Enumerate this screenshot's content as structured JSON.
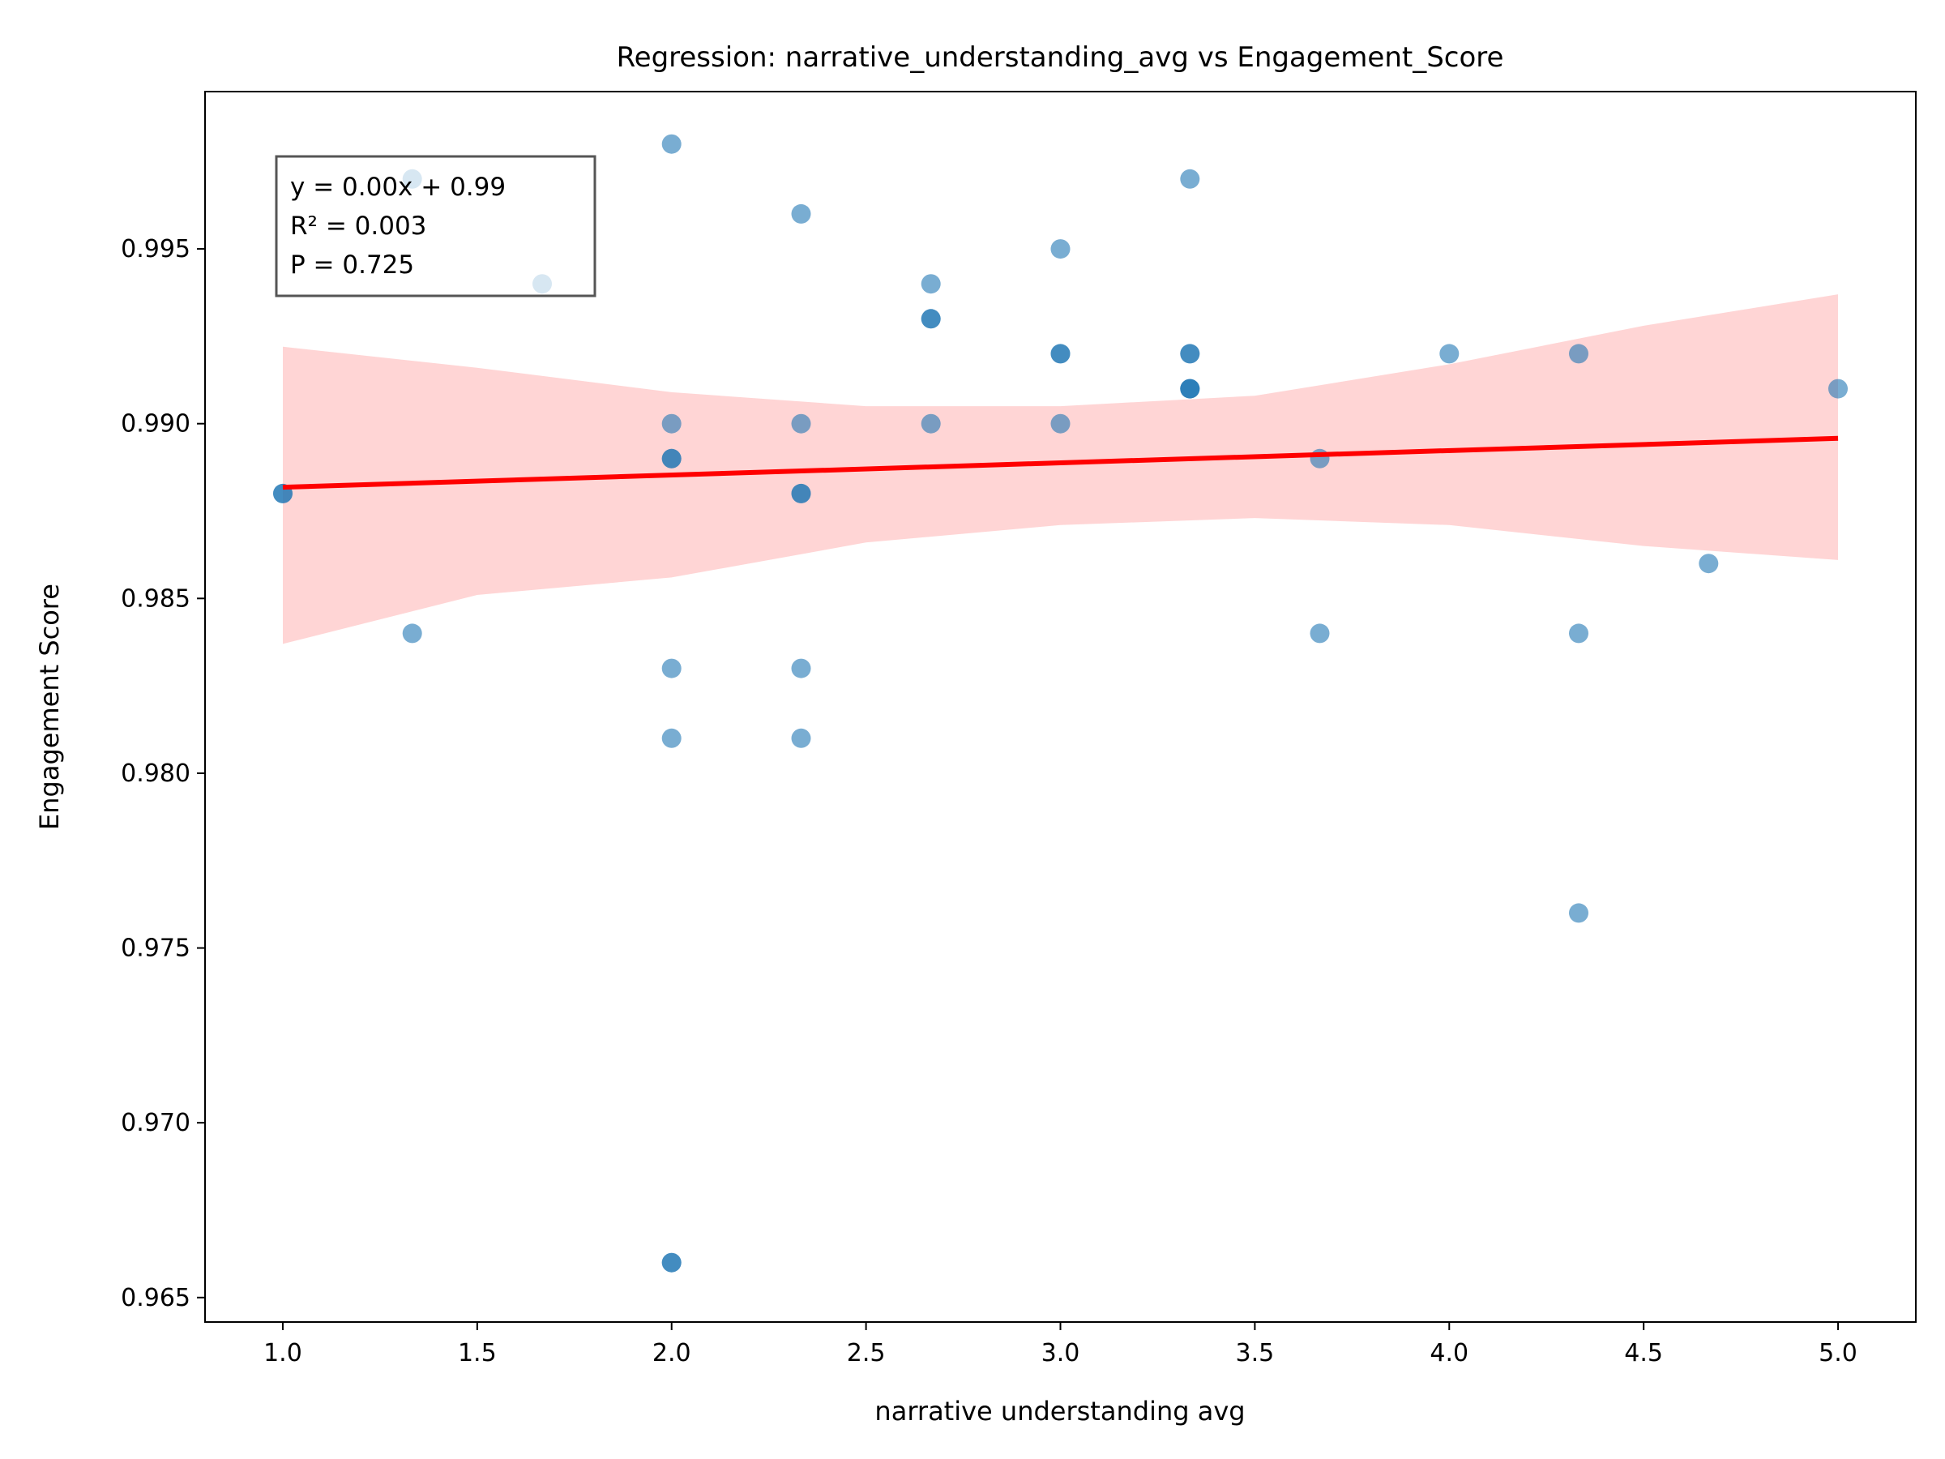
{
  "chart_data": {
    "type": "scatter",
    "title": "Regression: narrative_understanding_avg vs Engagement_Score",
    "xlabel": "narrative understanding avg",
    "ylabel": "Engagement Score",
    "xlim": [
      0.8,
      5.2
    ],
    "ylim": [
      0.9643,
      0.9995
    ],
    "xticks": [
      1.0,
      1.5,
      2.0,
      2.5,
      3.0,
      3.5,
      4.0,
      4.5,
      5.0
    ],
    "xtick_labels": [
      "1.0",
      "1.5",
      "2.0",
      "2.5",
      "3.0",
      "3.5",
      "4.0",
      "4.5",
      "5.0"
    ],
    "yticks": [
      0.965,
      0.97,
      0.975,
      0.98,
      0.985,
      0.99,
      0.995
    ],
    "ytick_labels": [
      "0.965",
      "0.970",
      "0.975",
      "0.980",
      "0.985",
      "0.990",
      "0.995"
    ],
    "grid": false,
    "points": [
      {
        "x": 1.0,
        "y": 0.988
      },
      {
        "x": 1.0,
        "y": 0.988
      },
      {
        "x": 1.333,
        "y": 0.997
      },
      {
        "x": 1.333,
        "y": 0.984
      },
      {
        "x": 1.667,
        "y": 0.994
      },
      {
        "x": 2.0,
        "y": 0.998
      },
      {
        "x": 2.0,
        "y": 0.99
      },
      {
        "x": 2.0,
        "y": 0.989
      },
      {
        "x": 2.0,
        "y": 0.989
      },
      {
        "x": 2.0,
        "y": 0.983
      },
      {
        "x": 2.0,
        "y": 0.981
      },
      {
        "x": 2.0,
        "y": 0.966
      },
      {
        "x": 2.0,
        "y": 0.966
      },
      {
        "x": 2.333,
        "y": 0.996
      },
      {
        "x": 2.333,
        "y": 0.99
      },
      {
        "x": 2.333,
        "y": 0.988
      },
      {
        "x": 2.333,
        "y": 0.988
      },
      {
        "x": 2.333,
        "y": 0.983
      },
      {
        "x": 2.333,
        "y": 0.981
      },
      {
        "x": 2.667,
        "y": 0.994
      },
      {
        "x": 2.667,
        "y": 0.993
      },
      {
        "x": 2.667,
        "y": 0.993
      },
      {
        "x": 2.667,
        "y": 0.99
      },
      {
        "x": 3.0,
        "y": 0.995
      },
      {
        "x": 3.0,
        "y": 0.992
      },
      {
        "x": 3.0,
        "y": 0.992
      },
      {
        "x": 3.0,
        "y": 0.99
      },
      {
        "x": 3.333,
        "y": 0.997
      },
      {
        "x": 3.333,
        "y": 0.992
      },
      {
        "x": 3.333,
        "y": 0.992
      },
      {
        "x": 3.333,
        "y": 0.991
      },
      {
        "x": 3.333,
        "y": 0.991
      },
      {
        "x": 3.333,
        "y": 0.991
      },
      {
        "x": 3.667,
        "y": 0.989
      },
      {
        "x": 3.667,
        "y": 0.984
      },
      {
        "x": 4.0,
        "y": 0.992
      },
      {
        "x": 4.333,
        "y": 0.992
      },
      {
        "x": 4.333,
        "y": 0.984
      },
      {
        "x": 4.333,
        "y": 0.976
      },
      {
        "x": 4.667,
        "y": 0.986
      },
      {
        "x": 5.0,
        "y": 0.991
      }
    ],
    "regression_line": {
      "x": [
        1.0,
        5.0
      ],
      "y": [
        0.98818,
        0.98958
      ]
    },
    "confidence_band": {
      "x": [
        1.0,
        1.5,
        2.0,
        2.5,
        3.0,
        3.5,
        4.0,
        4.5,
        5.0
      ],
      "lower": [
        0.9837,
        0.9851,
        0.9856,
        0.9866,
        0.9871,
        0.9873,
        0.9871,
        0.9865,
        0.9861
      ],
      "upper": [
        0.9922,
        0.9916,
        0.9909,
        0.9905,
        0.9905,
        0.9908,
        0.9917,
        0.9928,
        0.9937
      ]
    },
    "stats_box": {
      "lines": [
        "y = 0.00x + 0.99",
        "R² = 0.003",
        "P = 0.725"
      ]
    },
    "colors": {
      "points": "#1f77b4",
      "line": "#ff0000",
      "band": "#ffb3b3"
    }
  }
}
